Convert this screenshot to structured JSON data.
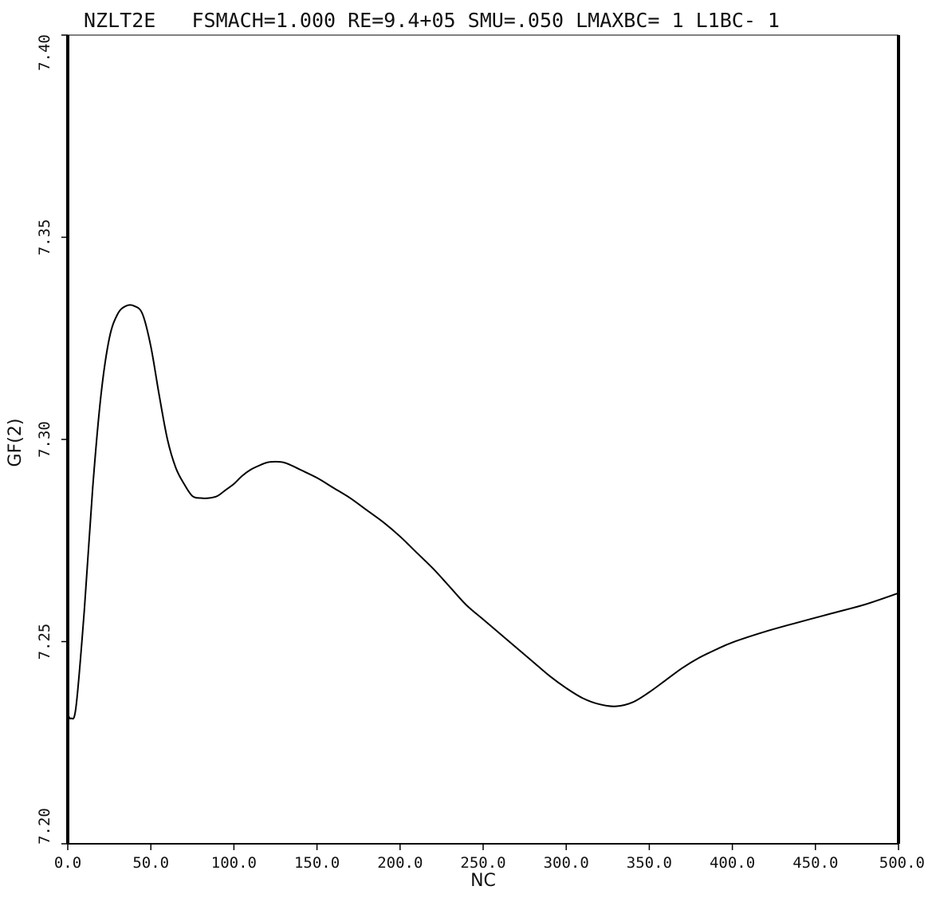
{
  "chart_data": {
    "type": "line",
    "title": "NZLT2E   FSMACH=1.000 RE=9.4+05 SMU=.050 LMAXBC= 1 L1BC- 1",
    "xlabel": "NC",
    "ylabel": "GF(2)",
    "xlim": [
      0,
      500
    ],
    "ylim": [
      7.2,
      7.4
    ],
    "x_ticks": [
      "0.0",
      "50.0",
      "100.0",
      "150.0",
      "200.0",
      "250.0",
      "300.0",
      "350.0",
      "400.0",
      "450.0",
      "500.0"
    ],
    "y_ticks": [
      "7.20",
      "7.25",
      "7.30",
      "7.35",
      "7.40"
    ],
    "grid": false,
    "series": [
      {
        "x": [
          0,
          2,
          5,
          10,
          15,
          20,
          25,
          30,
          35,
          40,
          45,
          50,
          55,
          60,
          65,
          70,
          75,
          80,
          85,
          90,
          95,
          100,
          105,
          110,
          115,
          120,
          125,
          130,
          135,
          140,
          150,
          160,
          170,
          180,
          190,
          200,
          210,
          220,
          230,
          240,
          250,
          260,
          270,
          280,
          290,
          300,
          310,
          320,
          330,
          340,
          350,
          360,
          370,
          380,
          390,
          400,
          420,
          440,
          460,
          480,
          500
        ],
        "y": [
          7.232,
          7.231,
          7.234,
          7.258,
          7.288,
          7.311,
          7.325,
          7.331,
          7.333,
          7.333,
          7.331,
          7.323,
          7.311,
          7.3,
          7.293,
          7.289,
          7.286,
          7.2855,
          7.2855,
          7.286,
          7.2875,
          7.289,
          7.291,
          7.2925,
          7.2935,
          7.2943,
          7.2945,
          7.2943,
          7.2935,
          7.2925,
          7.2905,
          7.288,
          7.2855,
          7.2825,
          7.2795,
          7.276,
          7.272,
          7.268,
          7.2635,
          7.259,
          7.2555,
          7.252,
          7.2485,
          7.245,
          7.2415,
          7.2385,
          7.236,
          7.2345,
          7.234,
          7.235,
          7.2375,
          7.2405,
          7.2435,
          7.246,
          7.248,
          7.2498,
          7.2525,
          7.2548,
          7.257,
          7.2592,
          7.262
        ]
      }
    ]
  }
}
